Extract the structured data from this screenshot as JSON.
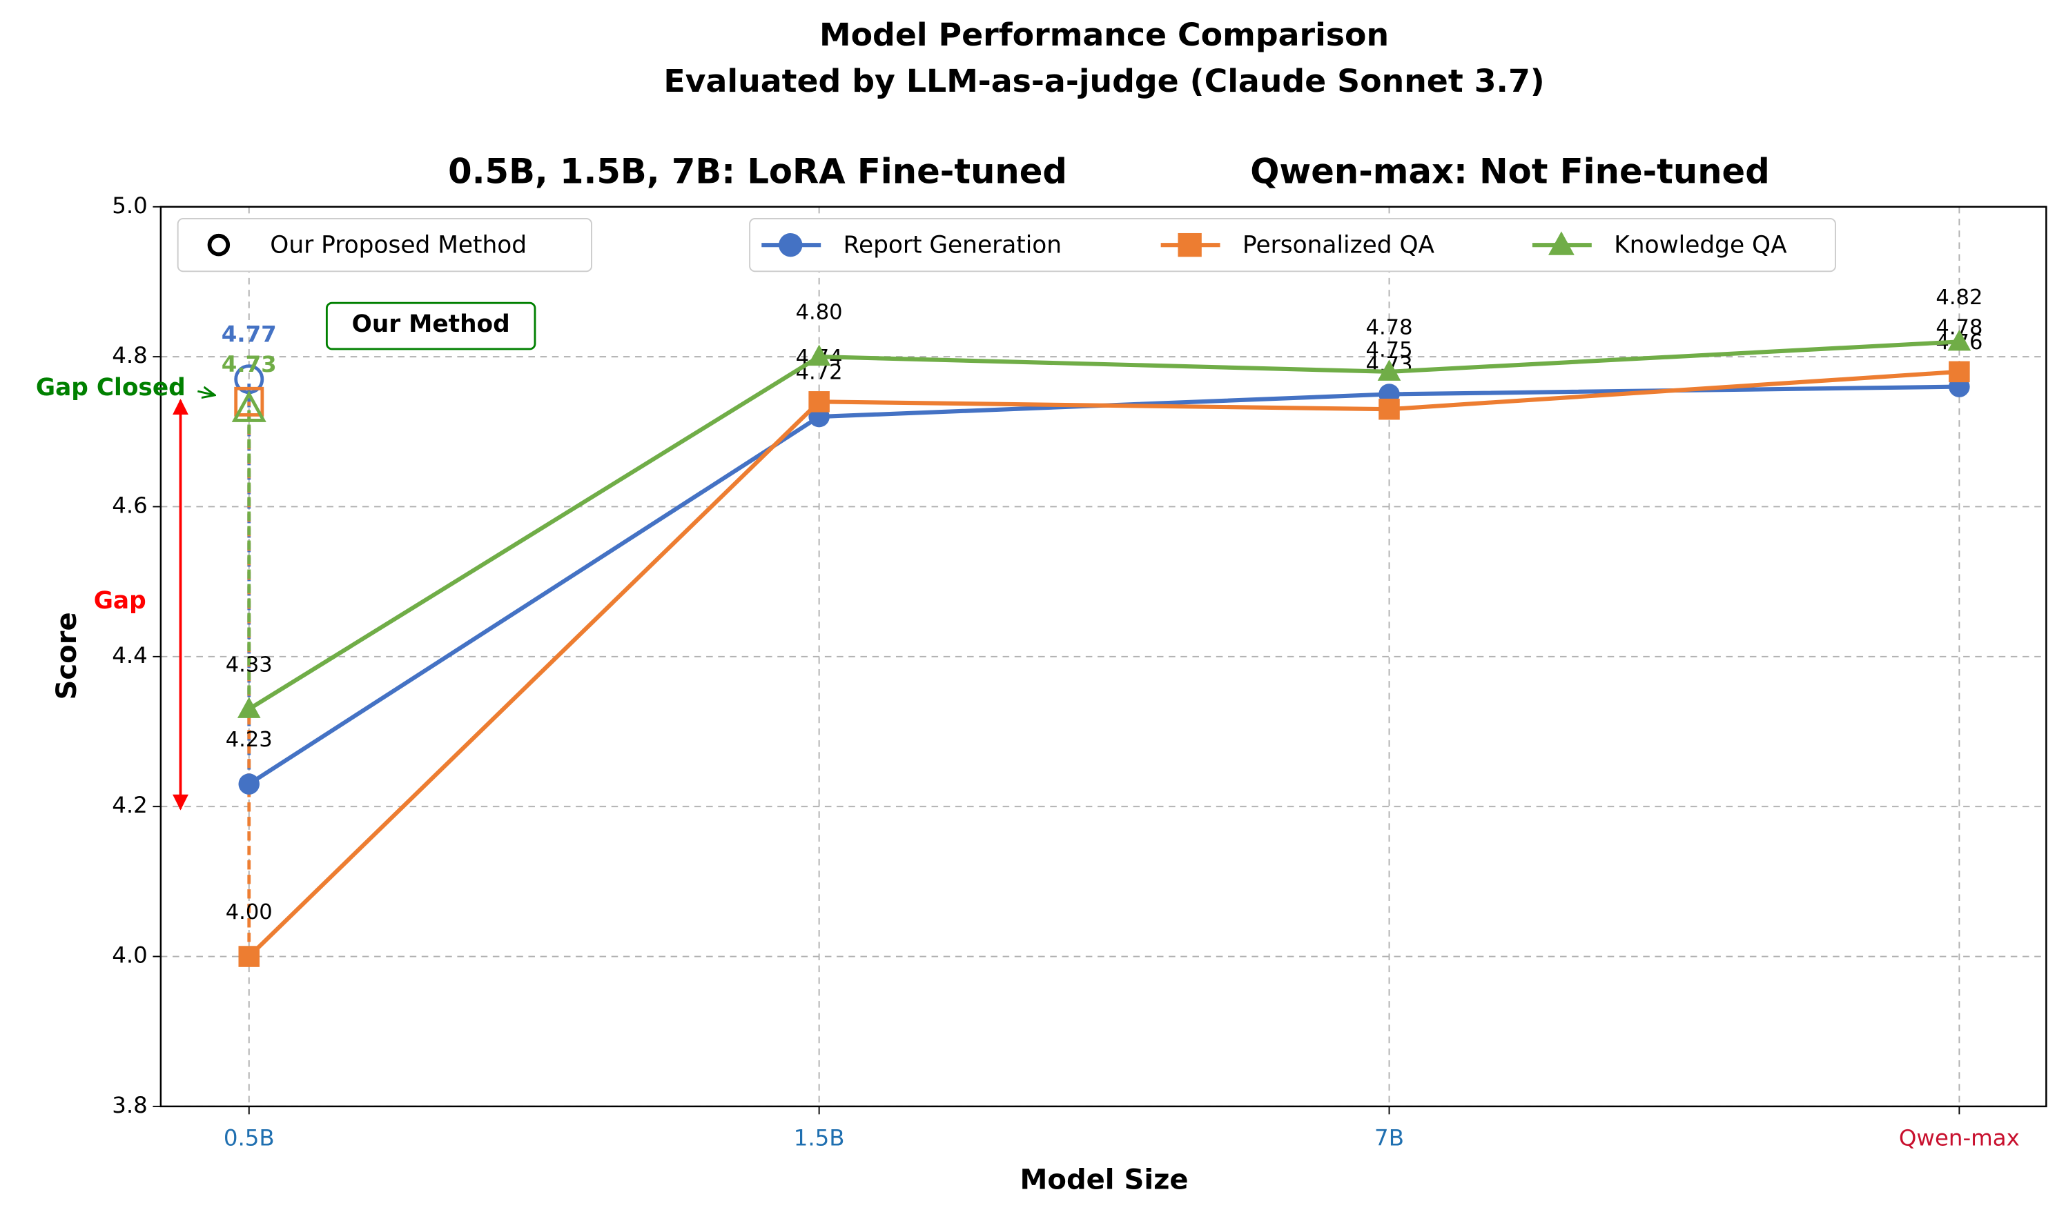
{
  "chart_data": {
    "type": "line",
    "title": [
      "Model Performance Comparison",
      "Evaluated by LLM-as-a-judge (Claude Sonnet 3.7)"
    ],
    "subtitle": [
      "0.5B, 1.5B, 7B: LoRA Fine-tuned",
      "Qwen-max: Not Fine-tuned"
    ],
    "x_label": "Model Size",
    "y_label": "Score",
    "categories": [
      "0.5B",
      "1.5B",
      "7B",
      "Qwen-max"
    ],
    "category_colors": [
      "#1f6fb0",
      "#1f6fb0",
      "#1f6fb0",
      "#c8102e"
    ],
    "ylim": [
      3.8,
      5.0
    ],
    "yticks": [
      3.8,
      {
        "value": 4,
        "label": "4.0"
      },
      4.2,
      4.4,
      4.6,
      4.8,
      {
        "value": 5,
        "label": "5.0"
      }
    ],
    "grid": true,
    "proposed_name": "Our Proposed Method",
    "series": [
      {
        "name": "Report Generation",
        "color": "#4472c4",
        "marker": "circle",
        "values": [
          4.23,
          4.72,
          4.75,
          4.76
        ],
        "value_labels": [
          "4.23",
          "4.72",
          "4.75",
          "4.76"
        ],
        "proposed": 4.77,
        "proposed_label": "4.77"
      },
      {
        "name": "Personalized QA",
        "color": "#ed7d31",
        "marker": "square",
        "values": [
          4.0,
          4.74,
          4.73,
          4.78
        ],
        "value_labels": [
          "4.00",
          "4.74",
          "4.73",
          "4.78"
        ],
        "proposed": 4.74
      },
      {
        "name": "Knowledge QA",
        "color": "#70ad47",
        "marker": "triangle",
        "values": [
          4.33,
          4.8,
          4.78,
          4.82
        ],
        "value_labels": [
          "4.33",
          "4.80",
          "4.78",
          "4.82"
        ],
        "proposed": 4.73,
        "proposed_label": "4.73"
      }
    ],
    "annotations": {
      "our_method": "Our Method",
      "gap_closed": "Gap Closed",
      "gap": "Gap"
    }
  }
}
